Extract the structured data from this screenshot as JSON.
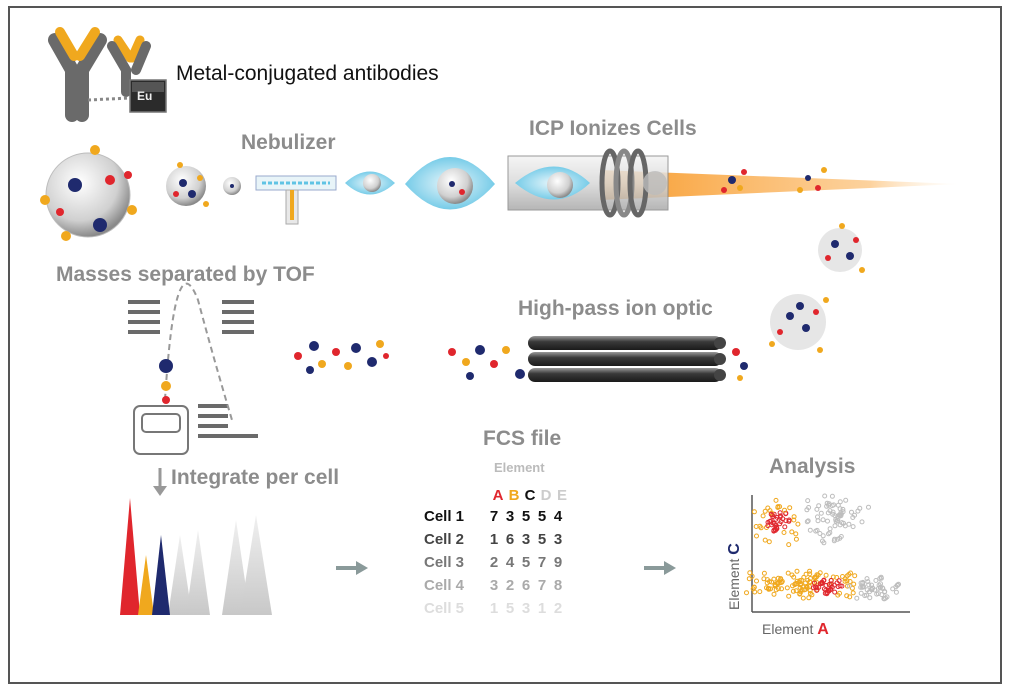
{
  "labels": {
    "antibodies": "Metal-conjugated antibodies",
    "tag_metal": "Eu",
    "nebulizer": "Nebulizer",
    "icp": "ICP Ionizes Cells",
    "tof": "Masses separated by TOF",
    "ion_optic": "High-pass ion optic",
    "integrate": "Integrate per cell",
    "fcs": "FCS file",
    "analysis": "Analysis"
  },
  "fcs_table": {
    "element_header": "Element",
    "columns": [
      "A",
      "B",
      "C",
      "D",
      "E"
    ],
    "column_colors": [
      "#e0262d",
      "#f0a81e",
      "#111111",
      "#cccccc",
      "#cccccc"
    ],
    "rows": [
      {
        "label": "Cell 1",
        "values": [
          "7",
          "3",
          "5",
          "5",
          "4"
        ],
        "color": "#111111"
      },
      {
        "label": "Cell 2",
        "values": [
          "1",
          "6",
          "3",
          "5",
          "3"
        ],
        "color": "#444444"
      },
      {
        "label": "Cell 3",
        "values": [
          "2",
          "4",
          "5",
          "7",
          "9"
        ],
        "color": "#777777"
      },
      {
        "label": "Cell 4",
        "values": [
          "3",
          "2",
          "6",
          "7",
          "8"
        ],
        "color": "#aaaaaa"
      },
      {
        "label": "Cell 5",
        "values": [
          "1",
          "5",
          "3",
          "1",
          "2"
        ],
        "color": "#dddddd"
      }
    ]
  },
  "scatter_axes": {
    "y_label_prefix": "Element ",
    "y_label_letter": "C",
    "x_label_prefix": "Element ",
    "x_label_letter": "A"
  },
  "colors": {
    "red": "#e0262d",
    "orange": "#f0a81e",
    "navy": "#1f2a6e",
    "label_gray": "#8c8c8c",
    "plasma": "#f7941d"
  }
}
